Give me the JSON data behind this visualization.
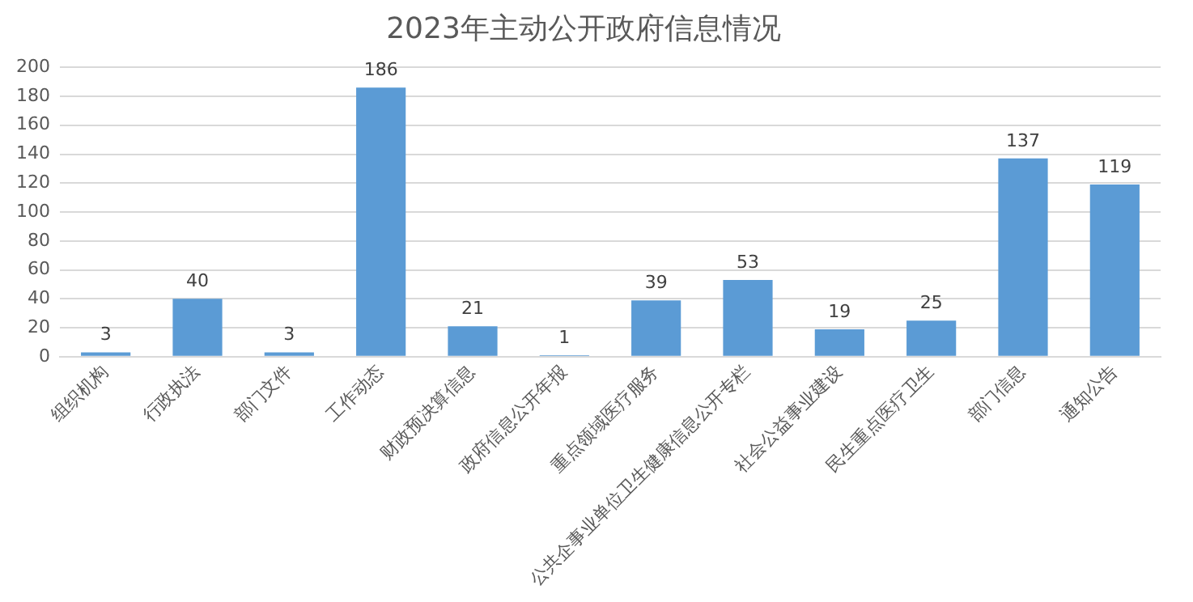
{
  "chart_data": {
    "type": "bar",
    "title": "2023年主动公开政府信息情况",
    "categories": [
      "组织机构",
      "行政执法",
      "部门文件",
      "工作动态",
      "财政预决算信息",
      "政府信息公开年报",
      "重点领域医疗服务",
      "公共企事业单位卫生健康信息公开专栏",
      "社会公益事业建设",
      "民生重点医疗卫生",
      "部门信息",
      "通知公告"
    ],
    "values": [
      3,
      40,
      3,
      186,
      21,
      1,
      39,
      53,
      19,
      25,
      137,
      119
    ],
    "color": "#5b9bd5",
    "ylim": [
      0,
      200
    ],
    "yticks": [
      0,
      20,
      40,
      60,
      80,
      100,
      120,
      140,
      160,
      180,
      200
    ],
    "grid": "y",
    "data_labels": true,
    "legend": false
  }
}
